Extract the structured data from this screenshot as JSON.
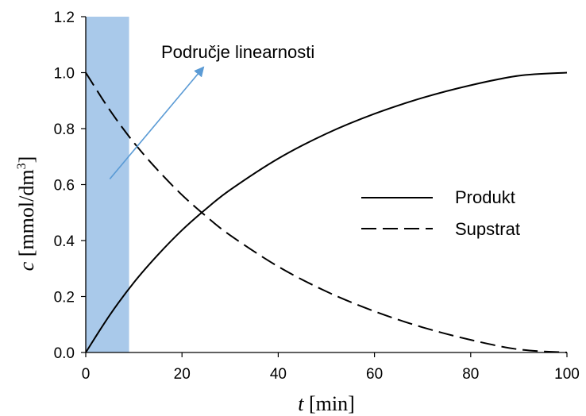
{
  "chart_data": {
    "type": "line",
    "title": "",
    "xlabel": {
      "var": "t",
      "unit": " [min]"
    },
    "ylabel": {
      "var": "c",
      "unit_pre": " [mmol/dm",
      "unit_sup": "3",
      "unit_post": "]"
    },
    "xlim": [
      0,
      100
    ],
    "ylim": [
      0,
      1.2
    ],
    "xticks": [
      "0",
      "20",
      "40",
      "60",
      "80",
      "100"
    ],
    "yticks": [
      "0.0",
      "0.2",
      "0.4",
      "0.6",
      "0.8",
      "1.0",
      "1.2"
    ],
    "grid": false,
    "legend_position": "right",
    "highlight_region": {
      "x": [
        0,
        9
      ],
      "color": "#a9c9ea"
    },
    "annotation": {
      "text": "Područje linearnosti",
      "arrow_from": [
        5,
        0.62
      ],
      "arrow_to": [
        24.5,
        1.02
      ],
      "color": "#5b9bd5"
    },
    "series": [
      {
        "name": "Produkt",
        "style": "solid",
        "color": "#000000",
        "x": [
          0,
          5,
          10,
          15,
          20,
          25,
          30,
          40,
          50,
          60,
          70,
          80,
          90,
          100
        ],
        "y": [
          0.0,
          0.134,
          0.25,
          0.349,
          0.437,
          0.513,
          0.581,
          0.693,
          0.782,
          0.853,
          0.91,
          0.955,
          0.989,
          1.0
        ]
      },
      {
        "name": "Supstrat",
        "style": "dashed",
        "color": "#000000",
        "x": [
          0,
          5,
          10,
          15,
          20,
          25,
          30,
          40,
          50,
          60,
          70,
          80,
          90,
          100
        ],
        "y": [
          1.0,
          0.866,
          0.75,
          0.651,
          0.563,
          0.487,
          0.419,
          0.307,
          0.218,
          0.147,
          0.09,
          0.045,
          0.011,
          0.0
        ]
      }
    ]
  }
}
